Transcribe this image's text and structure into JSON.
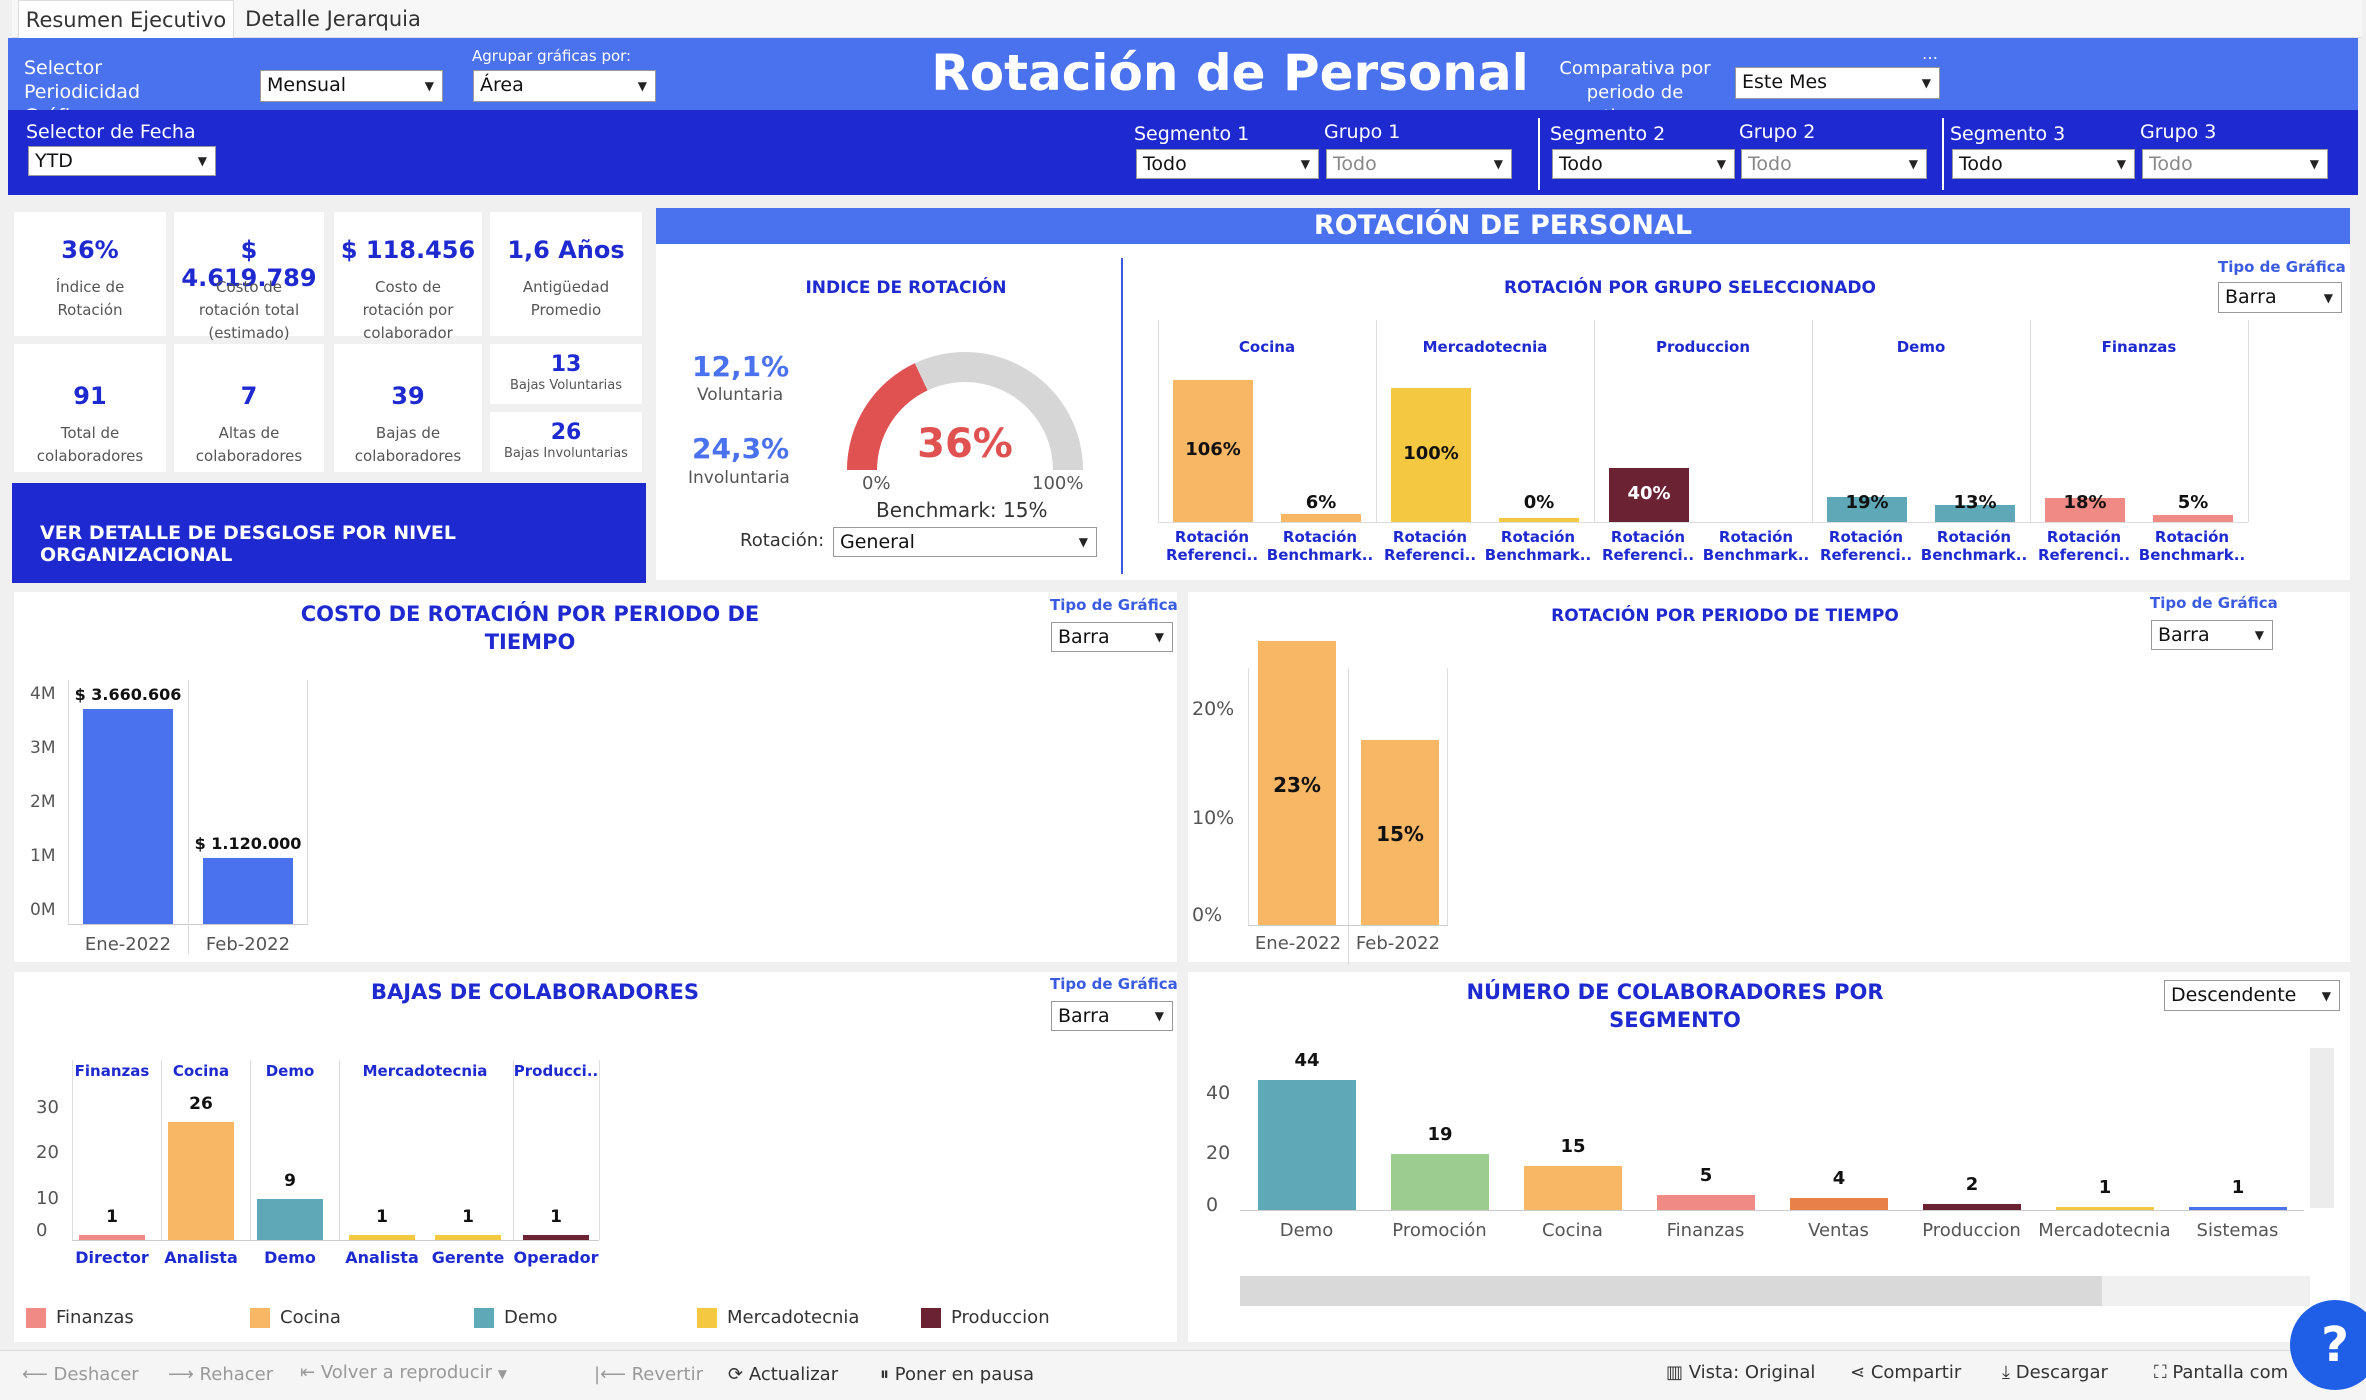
{
  "tabs": [
    "Resumen Ejecutivo",
    "Detalle Jerarquia"
  ],
  "header": {
    "title": "Rotación de Personal",
    "periodicidad_label": "Selector Periodicidad Gráficas",
    "periodicidad_value": "Mensual",
    "agrupar_label": "Agrupar gráficas por:",
    "agrupar_value": "Área",
    "comparativa_label": "Comparativa por periodo de tiempo",
    "comparativa_value": "Este Mes",
    "fecha_label": "Selector de Fecha",
    "fecha_value": "YTD",
    "segmentos": [
      {
        "seg_label": "Segmento 1",
        "seg_value": "Todo",
        "grp_label": "Grupo 1",
        "grp_value": "Todo"
      },
      {
        "seg_label": "Segmento 2",
        "seg_value": "Todo",
        "grp_label": "Grupo 2",
        "grp_value": "Todo"
      },
      {
        "seg_label": "Segmento 3",
        "seg_value": "Todo",
        "grp_label": "Grupo 3",
        "grp_value": "Todo"
      }
    ]
  },
  "kpis": [
    {
      "value": "36%",
      "label": "Índice de Rotación"
    },
    {
      "value": "$ 4.619.789",
      "label": "Costo de rotación total (estimado)"
    },
    {
      "value": "$ 118.456",
      "label": "Costo de rotación por colaborador (estimado)"
    },
    {
      "value": "1,6 Años",
      "label": "Antigüedad Promedio"
    },
    {
      "value": "91",
      "label": "Total de colaboradores"
    },
    {
      "value": "7",
      "label": "Altas de colaboradores"
    },
    {
      "value": "39",
      "label": "Bajas de colaboradores"
    },
    {
      "value": "13",
      "label": "Bajas Voluntarias"
    },
    {
      "value": "26",
      "label": "Bajas Involuntarias"
    }
  ],
  "detail_button": "VER DETALLE DE DESGLOSE POR NIVEL ORGANIZACIONAL",
  "rotacion": {
    "banner": "ROTACIÓN DE PERSONAL",
    "indice_title": "INDICE DE ROTACIÓN",
    "voluntaria_pct": "12,1%",
    "voluntaria_label": "Voluntaria",
    "involuntaria_pct": "24,3%",
    "involuntaria_label": "Involuntaria",
    "gauge_value": "36%",
    "gauge_fraction": 0.36,
    "gauge_min": "0%",
    "gauge_max": "100%",
    "benchmark": "Benchmark: 15%",
    "rotacion_label": "Rotación:",
    "rotacion_value": "General"
  },
  "tipo_grafica_label": "Tipo de Gráfica",
  "tipo_grafica_value": "Barra",
  "orden_value": "Descendente",
  "chart_data": [
    {
      "type": "bar",
      "title": "ROTACIÓN POR GRUPO SELECCIONADO",
      "groups": [
        "Cocina",
        "Mercadotecnia",
        "Produccion",
        "Demo",
        "Finanzas"
      ],
      "categories": [
        "Rotación Referenci..",
        "Rotación Benchmark.."
      ],
      "values": [
        [
          106,
          6
        ],
        [
          100,
          0
        ],
        [
          40,
          null
        ],
        [
          19,
          13
        ],
        [
          18,
          5
        ]
      ],
      "labels": [
        [
          "106%",
          "6%"
        ],
        [
          "100%",
          "0%"
        ],
        [
          "40%",
          ""
        ],
        [
          "19%",
          "13%"
        ],
        [
          "18%",
          "5%"
        ]
      ],
      "colors": [
        "#f7b765",
        "#f5c842",
        "#6b2334",
        "#5fa8b8",
        "#f08a84"
      ]
    },
    {
      "type": "bar",
      "title": "COSTO DE ROTACIÓN POR PERIODO DE TIEMPO",
      "categories": [
        "Ene-2022",
        "Feb-2022"
      ],
      "values": [
        3660606,
        1120000
      ],
      "labels": [
        "$ 3.660.606",
        "$ 1.120.000"
      ],
      "yticks": [
        "4M",
        "3M",
        "2M",
        "1M",
        "0M"
      ],
      "ylim": [
        0,
        4000000
      ],
      "color": "#4a71ee"
    },
    {
      "type": "bar",
      "title": "ROTACIÓN POR PERIODO DE TIEMPO",
      "categories": [
        "Ene-2022",
        "Feb-2022"
      ],
      "values": [
        23,
        15
      ],
      "labels": [
        "23%",
        "15%"
      ],
      "yticks": [
        "20%",
        "10%",
        "0%"
      ],
      "ylim": [
        0,
        25
      ],
      "color": "#f7b765"
    },
    {
      "type": "bar",
      "title": "BAJAS DE COLABORADORES",
      "groups": [
        "Finanzas",
        "Cocina",
        "Demo",
        "Mercadotecnia",
        "Producci.."
      ],
      "bars": [
        {
          "group": "Finanzas",
          "category": "Director",
          "value": 1,
          "color": "#f08a84"
        },
        {
          "group": "Cocina",
          "category": "Analista",
          "value": 26,
          "color": "#f7b765"
        },
        {
          "group": "Demo",
          "category": "Demo",
          "value": 9,
          "color": "#5fa8b8"
        },
        {
          "group": "Mercadotecnia",
          "category": "Analista",
          "value": 1,
          "color": "#f5c842"
        },
        {
          "group": "Mercadotecnia",
          "category": "Gerente",
          "value": 1,
          "color": "#f5c842"
        },
        {
          "group": "Producci..",
          "category": "Operador",
          "value": 1,
          "color": "#6b2334"
        }
      ],
      "yticks": [
        "30",
        "20",
        "10",
        "0"
      ],
      "ylim": [
        0,
        30
      ],
      "legend": [
        {
          "name": "Finanzas",
          "color": "#f08a84"
        },
        {
          "name": "Cocina",
          "color": "#f7b765"
        },
        {
          "name": "Demo",
          "color": "#5fa8b8"
        },
        {
          "name": "Mercadotecnia",
          "color": "#f5c842"
        },
        {
          "name": "Produccion",
          "color": "#6b2334"
        }
      ]
    },
    {
      "type": "bar",
      "title": "NÚMERO DE COLABORADORES POR SEGMENTO",
      "categories": [
        "Demo",
        "Promoción",
        "Cocina",
        "Finanzas",
        "Ventas",
        "Produccion",
        "Mercadotecnia",
        "Sistemas"
      ],
      "values": [
        44,
        19,
        15,
        5,
        4,
        2,
        1,
        1
      ],
      "colors": [
        "#5fa8b8",
        "#9ccc8e",
        "#f7b765",
        "#f08a84",
        "#e8804a",
        "#6b2334",
        "#f5c842",
        "#4a71ee"
      ],
      "yticks": [
        "40",
        "20",
        "0"
      ],
      "ylim": [
        0,
        46
      ]
    }
  ],
  "footer": {
    "undo": "Deshacer",
    "redo": "Rehacer",
    "replay": "Volver a reproducir",
    "revert": "Revertir",
    "refresh": "Actualizar",
    "pause": "Poner en pausa",
    "view": "Vista: Original",
    "share": "Compartir",
    "download": "Descargar",
    "fullscreen": "Pantalla com"
  },
  "help": "?"
}
